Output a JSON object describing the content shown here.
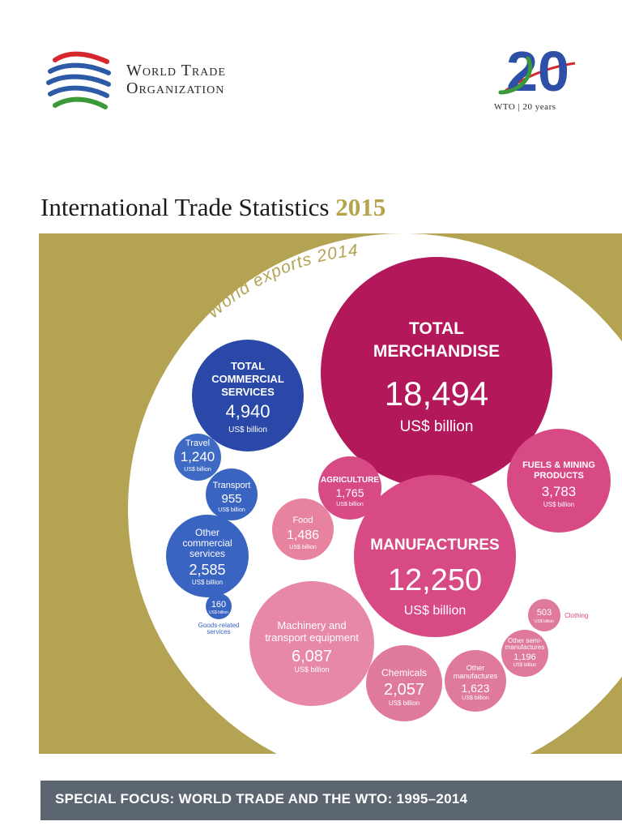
{
  "header": {
    "org_line1": "World Trade",
    "org_line2": "Organization",
    "anniversary_number": "20",
    "anniversary_caption": "WTO | 20 years"
  },
  "title": {
    "main": "International Trade Statistics",
    "year": "2015"
  },
  "infographic": {
    "arc_caption": "World exports 2014",
    "bubbles": {
      "total_merchandise": {
        "title1": "TOTAL",
        "title2": "MERCHANDISE",
        "value": "18,494",
        "unit": "US$ billion"
      },
      "total_commercial_services": {
        "title1": "TOTAL",
        "title2": "COMMERCIAL",
        "title3": "SERVICES",
        "value": "4,940",
        "unit": "US$ billion"
      },
      "travel": {
        "title": "Travel",
        "value": "1,240",
        "unit": "US$ billion"
      },
      "transport": {
        "title": "Transport",
        "value": "955",
        "unit": "US$ billion"
      },
      "other_commercial_services": {
        "title1": "Other",
        "title2": "commercial",
        "title3": "services",
        "value": "2,585",
        "unit": "US$ billion"
      },
      "goods_related_services": {
        "value": "160",
        "unit": "US$ billion",
        "caption1": "Goods-related",
        "caption2": "services"
      },
      "agriculture": {
        "title": "AGRICULTURE",
        "value": "1,765",
        "unit": "US$ billion"
      },
      "food": {
        "title": "Food",
        "value": "1,486",
        "unit": "US$ billion"
      },
      "fuels_mining": {
        "title1": "FUELS & MINING",
        "title2": "PRODUCTS",
        "value": "3,783",
        "unit": "US$ billion"
      },
      "manufactures": {
        "title": "MANUFACTURES",
        "value": "12,250",
        "unit": "US$ billion"
      },
      "machinery": {
        "title1": "Machinery and",
        "title2": "transport equipment",
        "value": "6,087",
        "unit": "US$ billion"
      },
      "chemicals": {
        "title": "Chemicals",
        "value": "2,057",
        "unit": "US$ billion"
      },
      "other_manufactures": {
        "title1": "Other",
        "title2": "manufactures",
        "value": "1,623",
        "unit": "US$ billion"
      },
      "other_semi_manufactures": {
        "title1": "Other semi-",
        "title2": "manufactures",
        "value": "1,196",
        "unit": "US$ billion"
      },
      "clothing": {
        "value": "503",
        "unit": "US$ billion",
        "caption": "Clothing"
      }
    }
  },
  "footer": {
    "text": "SPECIAL FOCUS: WORLD TRADE AND THE WTO: 1995–2014"
  },
  "colors": {
    "gold": "#b3a352",
    "merchandise": "#b3185a",
    "services_blue": "#2a48a8",
    "services_light_blue": "#4a79cf",
    "pink": "#d84a84",
    "light_pink": "#e88aab",
    "footer_grey": "#5c6670"
  }
}
